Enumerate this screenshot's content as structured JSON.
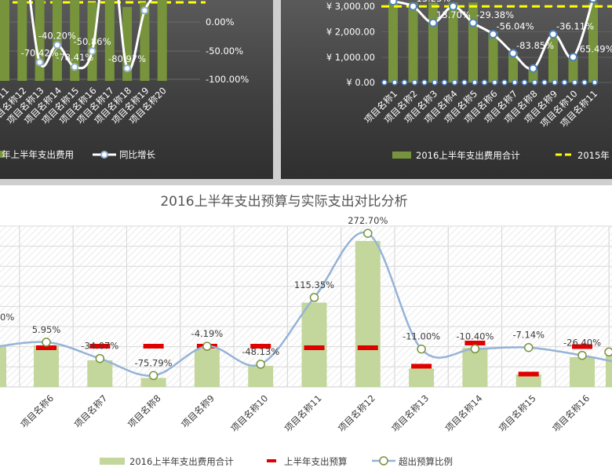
{
  "chart_data": [
    {
      "type": "bar",
      "categories": [
        "项目名称11",
        "项目名称12",
        "项目名称13",
        "项目名称14",
        "项目名称15",
        "项目名称16",
        "项目名称17",
        "项目名称18",
        "项目名称19",
        "项目名称20"
      ],
      "series": [
        {
          "name": "2016上半年支出费用",
          "type": "bar",
          "axis": "left",
          "values": [
            3000,
            3000,
            3000,
            2850,
            3000,
            2650,
            3000,
            2500,
            2650,
            2850
          ]
        },
        {
          "name": "同比增长",
          "type": "line",
          "axis": "right",
          "values": [
            60,
            120,
            -70.42,
            -40.2,
            -78.41,
            -50.86,
            150,
            -80.97,
            20,
            60
          ]
        }
      ],
      "data_labels": [
        "",
        "",
        "-70.42%",
        "-40.20%",
        "-78.41%",
        "-50.86%",
        "",
        "-80.97%",
        "",
        ""
      ],
      "right_ticks": [
        "0.00%",
        "-50.00%",
        "-100.00%"
      ],
      "legend": [
        "年上半年支出费用",
        "同比增长"
      ],
      "colors": {
        "bar": "#77933c",
        "line": "#ffffff",
        "marker_fill": "#ffffff",
        "marker_stroke": "#95b3d7",
        "target": "#ffff00"
      }
    },
    {
      "type": "bar",
      "categories": [
        "项目名称1",
        "项目名称2",
        "项目名称3",
        "项目名称4",
        "项目名称5",
        "项目名称6",
        "项目名称7",
        "项目名称8",
        "项目名称9",
        "项目名称10",
        "项目名称11"
      ],
      "series": [
        {
          "name": "2016上半年支出费用合计",
          "type": "bar",
          "values": [
            3150,
            3150,
            3150,
            3150,
            3150,
            2000,
            1200,
            500,
            1800,
            1000,
            3150
          ]
        },
        {
          "name": "2015年",
          "type": "target",
          "values": [
            3000,
            3000,
            3000,
            3000,
            3000,
            3000,
            3000,
            3000,
            3000,
            3000,
            3000
          ]
        },
        {
          "name": "同比",
          "type": "line",
          "values": [
            3200,
            3000,
            2350,
            3000,
            2350,
            1900,
            1150,
            550,
            1900,
            1000,
            3300
          ]
        }
      ],
      "data_labels": [
        "",
        "13.25%",
        "13.70%",
        "",
        "-29.38%",
        "-56.04%",
        "-83.85%",
        "",
        "-36.11%",
        "-65.49%",
        ""
      ],
      "y_ticks": [
        "¥ 3,000.00",
        "¥ 2,000.00",
        "¥ 1,000.00",
        "¥ 0.00"
      ],
      "legend": [
        "2016上半年支出费用合计",
        "2015年"
      ],
      "colors": {
        "bar": "#77933c",
        "target": "#ffff00",
        "line": "#ffffff",
        "marker_fill": "#ffffff",
        "marker_stroke": "#4f81bd"
      }
    },
    {
      "type": "bar",
      "title": "2016上半年支出预算与实际支出对比分析",
      "categories": [
        "项目名称6",
        "项目名称7",
        "项目名称8",
        "项目名称9",
        "项目名称10",
        "项目名称11",
        "项目名称12",
        "项目名称13",
        "项目名称14",
        "项目名称15",
        "项目名称16"
      ],
      "series": [
        {
          "name": "2016上半年支出费用合计",
          "type": "bar",
          "values": [
            1060,
            680,
            230,
            970,
            540,
            2150,
            3720,
            470,
            1000,
            320,
            760
          ]
        },
        {
          "name": "上半年支出预算",
          "type": "marker",
          "values": [
            1000,
            1040,
            1040,
            1040,
            1040,
            1000,
            1000,
            530,
            1120,
            330,
            1030
          ]
        },
        {
          "name": "超出预算比例",
          "type": "line",
          "values": [
            5.95,
            -34.07,
            -75.79,
            -4.19,
            -48.13,
            115.35,
            272.7,
            -11.0,
            -10.4,
            -7.14,
            -26.4
          ]
        }
      ],
      "data_labels": [
        "5.95%",
        "-34.07%",
        "-75.79%",
        "-4.19%",
        "-48.13%",
        "115.35%",
        "272.70%",
        "-11.00%",
        "-10.40%",
        "-7.14%",
        "-26.40%"
      ],
      "edge_labels": [
        "0%"
      ],
      "legend": [
        "2016上半年支出费用合计",
        "上半年支出预算",
        "超出预算比例"
      ],
      "colors": {
        "bar": "#c3d69b",
        "budget": "#e00000",
        "line": "#95b3d7",
        "marker_fill": "#ffffff",
        "marker_stroke": "#77933c"
      }
    }
  ]
}
